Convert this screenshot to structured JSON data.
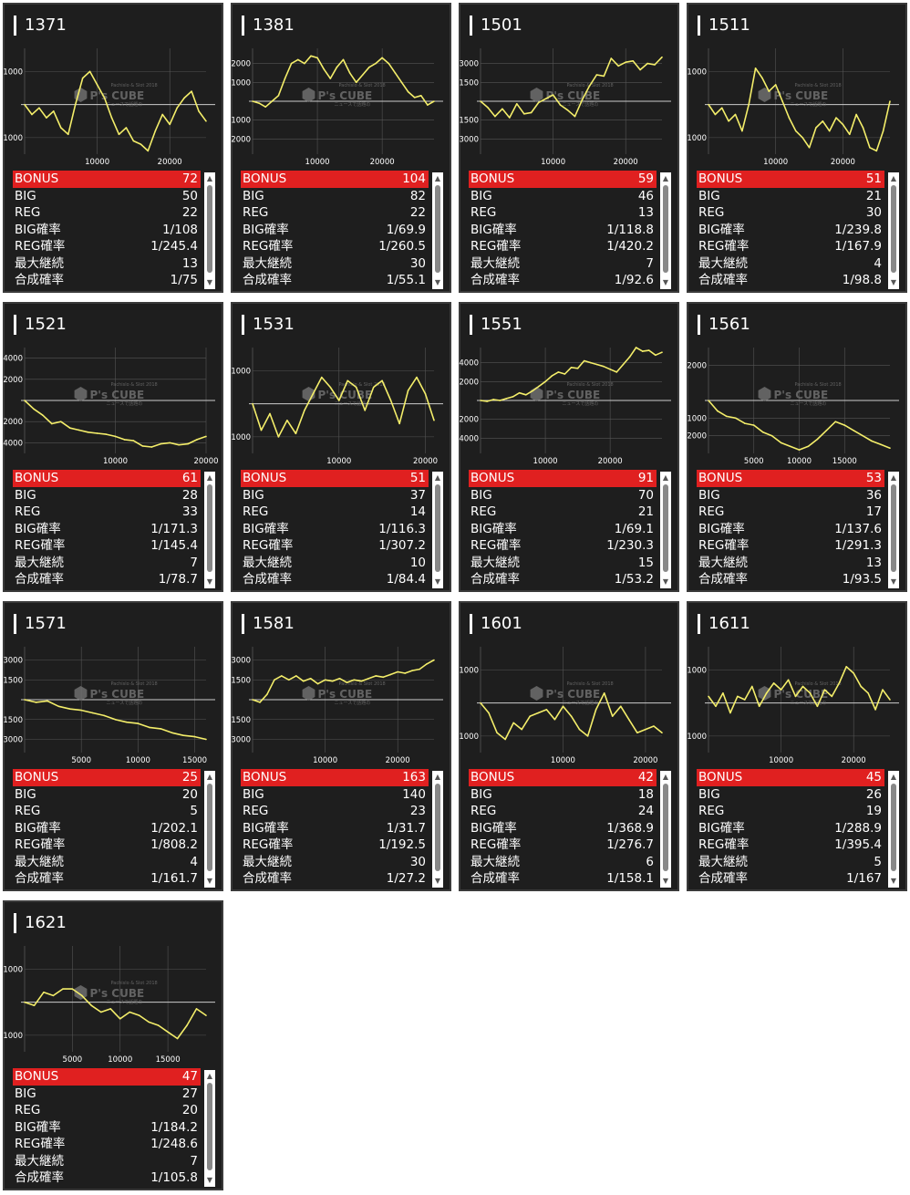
{
  "colors": {
    "line": "#f4ee6a",
    "bonus_bg": "#e02020",
    "card_bg": "#1e1e1e",
    "grid": "#555555",
    "axis": "#cccccc"
  },
  "watermark": {
    "brand": "P's CUBE",
    "sub": "Pachislo & Slot 2018",
    "sub2": "ニュースで話題の"
  },
  "stat_labels": [
    "BONUS",
    "BIG",
    "REG",
    "BIG確率",
    "REG確率",
    "最大継続",
    "合成確率"
  ],
  "icons": {
    "scroll_up": "▲",
    "scroll_down": "▼"
  },
  "chart_data": [
    {
      "type": "line",
      "title": "1371",
      "ylim": [
        -1500,
        1700
      ],
      "yticks": [
        1000,
        -1000
      ],
      "xlim": [
        0,
        25000
      ],
      "xticks": [
        10000,
        20000
      ],
      "x": [
        0,
        1000,
        2000,
        3000,
        4000,
        5000,
        6000,
        7000,
        8000,
        9000,
        10000,
        11000,
        12000,
        13000,
        14000,
        15000,
        16000,
        17000,
        18000,
        19000,
        20000,
        21000,
        22000,
        23000,
        24000,
        25000
      ],
      "y": [
        0,
        -300,
        -100,
        -400,
        -200,
        -700,
        -900,
        0,
        800,
        1000,
        600,
        200,
        -400,
        -900,
        -700,
        -1100,
        -1200,
        -1400,
        -800,
        -300,
        -600,
        -100,
        200,
        400,
        -200,
        -500
      ]
    },
    {
      "type": "line",
      "title": "1381",
      "ylim": [
        -2800,
        2800
      ],
      "yticks": [
        2000,
        1000,
        -1000,
        -2000
      ],
      "xlim": [
        0,
        28000
      ],
      "xticks": [
        10000,
        20000
      ],
      "x": [
        0,
        1000,
        2000,
        3000,
        4000,
        5000,
        6000,
        7000,
        8000,
        9000,
        10000,
        11000,
        12000,
        13000,
        14000,
        15000,
        16000,
        17000,
        18000,
        19000,
        20000,
        21000,
        22000,
        23000,
        24000,
        25000,
        26000,
        27000,
        28000
      ],
      "y": [
        0,
        -100,
        -300,
        0,
        300,
        1200,
        2000,
        2200,
        2000,
        2400,
        2300,
        1700,
        1200,
        1800,
        2200,
        1500,
        1000,
        1400,
        1800,
        2000,
        2300,
        2000,
        1500,
        1000,
        500,
        200,
        300,
        -200,
        0
      ]
    },
    {
      "type": "line",
      "title": "1501",
      "ylim": [
        -4200,
        4200
      ],
      "yticks": [
        3000,
        1500,
        -1500,
        -3000
      ],
      "xlim": [
        0,
        25000
      ],
      "xticks": [
        10000,
        20000
      ],
      "x": [
        0,
        1000,
        2000,
        3000,
        4000,
        5000,
        6000,
        7000,
        8000,
        9000,
        10000,
        11000,
        12000,
        13000,
        14000,
        15000,
        16000,
        17000,
        18000,
        19000,
        20000,
        21000,
        22000,
        23000,
        24000,
        25000
      ],
      "y": [
        0,
        -500,
        -1200,
        -600,
        -1300,
        -200,
        -1000,
        -900,
        -100,
        200,
        500,
        -300,
        -700,
        -1200,
        100,
        1200,
        2100,
        2000,
        3400,
        2800,
        3100,
        3200,
        2500,
        3000,
        2900,
        3500
      ]
    },
    {
      "type": "line",
      "title": "1511",
      "ylim": [
        -1500,
        1700
      ],
      "yticks": [
        1000,
        -1000
      ],
      "xlim": [
        0,
        27000
      ],
      "xticks": [
        10000,
        20000
      ],
      "x": [
        0,
        1000,
        2000,
        3000,
        4000,
        5000,
        6000,
        7000,
        8000,
        9000,
        10000,
        11000,
        12000,
        13000,
        14000,
        15000,
        16000,
        17000,
        18000,
        19000,
        20000,
        21000,
        22000,
        23000,
        24000,
        25000,
        26000,
        27000
      ],
      "y": [
        0,
        -300,
        -100,
        -500,
        -300,
        -800,
        0,
        1100,
        800,
        400,
        600,
        100,
        -400,
        -800,
        -1000,
        -1300,
        -700,
        -500,
        -800,
        -400,
        -600,
        -900,
        -300,
        -700,
        -1300,
        -1400,
        -800,
        100
      ]
    },
    {
      "type": "line",
      "title": "1521",
      "ylim": [
        -5000,
        5000
      ],
      "yticks": [
        4000,
        2000,
        -2000,
        -4000
      ],
      "xlim": [
        0,
        20000
      ],
      "xticks": [
        10000,
        20000
      ],
      "x": [
        0,
        1000,
        2000,
        3000,
        4000,
        5000,
        6000,
        7000,
        8000,
        9000,
        10000,
        11000,
        12000,
        13000,
        14000,
        15000,
        16000,
        17000,
        18000,
        19000,
        20000
      ],
      "y": [
        0,
        -800,
        -1400,
        -2200,
        -2000,
        -2600,
        -2800,
        -3000,
        -3100,
        -3200,
        -3400,
        -3700,
        -3800,
        -4300,
        -4400,
        -4100,
        -4000,
        -4200,
        -4100,
        -3700,
        -3400
      ]
    },
    {
      "type": "line",
      "title": "1531",
      "ylim": [
        -1500,
        1700
      ],
      "yticks": [
        1000,
        -1000
      ],
      "xlim": [
        0,
        21000
      ],
      "xticks": [
        10000,
        20000
      ],
      "x": [
        0,
        1000,
        2000,
        3000,
        4000,
        5000,
        6000,
        7000,
        8000,
        9000,
        10000,
        11000,
        12000,
        13000,
        14000,
        15000,
        16000,
        17000,
        18000,
        19000,
        20000,
        21000
      ],
      "y": [
        0,
        -800,
        -300,
        -1000,
        -500,
        -900,
        -200,
        300,
        800,
        500,
        100,
        700,
        500,
        -200,
        500,
        700,
        100,
        -600,
        400,
        800,
        300,
        -500
      ]
    },
    {
      "type": "line",
      "title": "1551",
      "ylim": [
        -5600,
        5600
      ],
      "yticks": [
        4000,
        2000,
        -2000,
        -4000
      ],
      "xlim": [
        0,
        28000
      ],
      "xticks": [
        10000,
        20000
      ],
      "x": [
        0,
        1000,
        2000,
        3000,
        4000,
        5000,
        6000,
        7000,
        8000,
        9000,
        10000,
        11000,
        12000,
        13000,
        14000,
        15000,
        16000,
        17000,
        18000,
        19000,
        20000,
        21000,
        22000,
        23000,
        24000,
        25000,
        26000,
        27000,
        28000
      ],
      "y": [
        0,
        -100,
        100,
        0,
        200,
        400,
        800,
        600,
        1000,
        1500,
        2000,
        2600,
        3000,
        2800,
        3500,
        3400,
        4200,
        4000,
        3800,
        3600,
        3300,
        3000,
        3800,
        4600,
        5600,
        5200,
        5300,
        4800,
        5100
      ]
    },
    {
      "type": "line",
      "title": "1561",
      "ylim": [
        -3000,
        3000
      ],
      "yticks": [
        2000,
        -1000,
        -2000
      ],
      "xlim": [
        0,
        20000
      ],
      "xticks": [
        5000,
        10000,
        15000
      ],
      "x": [
        0,
        1000,
        2000,
        3000,
        4000,
        5000,
        6000,
        7000,
        8000,
        9000,
        10000,
        11000,
        12000,
        13000,
        14000,
        15000,
        16000,
        17000,
        18000,
        19000,
        20000
      ],
      "y": [
        0,
        -600,
        -900,
        -1000,
        -1300,
        -1400,
        -1800,
        -2000,
        -2400,
        -2600,
        -2800,
        -2600,
        -2200,
        -1700,
        -1200,
        -1400,
        -1700,
        -2000,
        -2300,
        -2500,
        -2700
      ]
    },
    {
      "type": "line",
      "title": "1571",
      "ylim": [
        -4000,
        4000
      ],
      "yticks": [
        3000,
        1500,
        -1500,
        -3000
      ],
      "xlim": [
        0,
        16000
      ],
      "xticks": [
        5000,
        10000,
        15000
      ],
      "x": [
        0,
        1000,
        2000,
        3000,
        4000,
        5000,
        6000,
        7000,
        8000,
        9000,
        10000,
        11000,
        12000,
        13000,
        14000,
        15000,
        16000
      ],
      "y": [
        0,
        -200,
        -100,
        -500,
        -700,
        -800,
        -1000,
        -1200,
        -1500,
        -1700,
        -1800,
        -2100,
        -2200,
        -2500,
        -2700,
        -2800,
        -3000
      ]
    },
    {
      "type": "line",
      "title": "1581",
      "ylim": [
        -4000,
        4000
      ],
      "yticks": [
        3000,
        1500,
        -1500,
        -3000
      ],
      "xlim": [
        0,
        25000
      ],
      "xticks": [
        10000,
        20000
      ],
      "x": [
        0,
        1000,
        2000,
        3000,
        4000,
        5000,
        6000,
        7000,
        8000,
        9000,
        10000,
        11000,
        12000,
        13000,
        14000,
        15000,
        16000,
        17000,
        18000,
        19000,
        20000,
        21000,
        22000,
        23000,
        24000,
        25000
      ],
      "y": [
        0,
        -200,
        400,
        1500,
        1800,
        1500,
        1800,
        1400,
        1600,
        1200,
        1500,
        1400,
        1600,
        1300,
        1500,
        1400,
        1600,
        1800,
        1700,
        1900,
        2100,
        2000,
        2200,
        2300,
        2700,
        3000
      ]
    },
    {
      "type": "line",
      "title": "1601",
      "ylim": [
        -1500,
        1700
      ],
      "yticks": [
        1000,
        -1000
      ],
      "xlim": [
        0,
        22000
      ],
      "xticks": [
        10000,
        20000
      ],
      "x": [
        0,
        1000,
        2000,
        3000,
        4000,
        5000,
        6000,
        7000,
        8000,
        9000,
        10000,
        11000,
        12000,
        13000,
        14000,
        15000,
        16000,
        17000,
        18000,
        19000,
        20000,
        21000,
        22000
      ],
      "y": [
        0,
        -300,
        -900,
        -1100,
        -600,
        -800,
        -400,
        -300,
        -200,
        -500,
        -100,
        -400,
        -800,
        -1000,
        -200,
        300,
        -400,
        -100,
        -500,
        -900,
        -800,
        -700,
        -900
      ]
    },
    {
      "type": "line",
      "title": "1611",
      "ylim": [
        -1500,
        1700
      ],
      "yticks": [
        1000,
        -1000
      ],
      "xlim": [
        0,
        25000
      ],
      "xticks": [
        10000,
        20000
      ],
      "x": [
        0,
        1000,
        2000,
        3000,
        4000,
        5000,
        6000,
        7000,
        8000,
        9000,
        10000,
        11000,
        12000,
        13000,
        14000,
        15000,
        16000,
        17000,
        18000,
        19000,
        20000,
        21000,
        22000,
        23000,
        24000,
        25000
      ],
      "y": [
        200,
        -100,
        300,
        -300,
        200,
        100,
        500,
        -100,
        300,
        600,
        400,
        700,
        200,
        500,
        300,
        -100,
        400,
        200,
        600,
        1100,
        900,
        500,
        300,
        -200,
        400,
        100
      ]
    },
    {
      "type": "line",
      "title": "1621",
      "ylim": [
        -1500,
        1700
      ],
      "yticks": [
        1000,
        -1000
      ],
      "xlim": [
        0,
        19000
      ],
      "xticks": [
        5000,
        10000,
        15000
      ],
      "x": [
        0,
        1000,
        2000,
        3000,
        4000,
        5000,
        6000,
        7000,
        8000,
        9000,
        10000,
        11000,
        12000,
        13000,
        14000,
        15000,
        16000,
        17000,
        18000,
        19000
      ],
      "y": [
        0,
        -100,
        300,
        200,
        400,
        400,
        200,
        -100,
        -300,
        -200,
        -500,
        -300,
        -400,
        -600,
        -700,
        -900,
        -1100,
        -700,
        -200,
        -400
      ]
    }
  ],
  "machines": [
    {
      "id": "1371",
      "stats": [
        "72",
        "50",
        "22",
        "1/108",
        "1/245.4",
        "13",
        "1/75"
      ]
    },
    {
      "id": "1381",
      "stats": [
        "104",
        "82",
        "22",
        "1/69.9",
        "1/260.5",
        "30",
        "1/55.1"
      ]
    },
    {
      "id": "1501",
      "stats": [
        "59",
        "46",
        "13",
        "1/118.8",
        "1/420.2",
        "7",
        "1/92.6"
      ]
    },
    {
      "id": "1511",
      "stats": [
        "51",
        "21",
        "30",
        "1/239.8",
        "1/167.9",
        "4",
        "1/98.8"
      ]
    },
    {
      "id": "1521",
      "stats": [
        "61",
        "28",
        "33",
        "1/171.3",
        "1/145.4",
        "7",
        "1/78.7"
      ]
    },
    {
      "id": "1531",
      "stats": [
        "51",
        "37",
        "14",
        "1/116.3",
        "1/307.2",
        "10",
        "1/84.4"
      ]
    },
    {
      "id": "1551",
      "stats": [
        "91",
        "70",
        "21",
        "1/69.1",
        "1/230.3",
        "15",
        "1/53.2"
      ]
    },
    {
      "id": "1561",
      "stats": [
        "53",
        "36",
        "17",
        "1/137.6",
        "1/291.3",
        "13",
        "1/93.5"
      ]
    },
    {
      "id": "1571",
      "stats": [
        "25",
        "20",
        "5",
        "1/202.1",
        "1/808.2",
        "4",
        "1/161.7"
      ]
    },
    {
      "id": "1581",
      "stats": [
        "163",
        "140",
        "23",
        "1/31.7",
        "1/192.5",
        "30",
        "1/27.2"
      ]
    },
    {
      "id": "1601",
      "stats": [
        "42",
        "18",
        "24",
        "1/368.9",
        "1/276.7",
        "6",
        "1/158.1"
      ]
    },
    {
      "id": "1611",
      "stats": [
        "45",
        "26",
        "19",
        "1/288.9",
        "1/395.4",
        "5",
        "1/167"
      ]
    },
    {
      "id": "1621",
      "stats": [
        "47",
        "27",
        "20",
        "1/184.2",
        "1/248.6",
        "7",
        "1/105.8"
      ]
    }
  ]
}
